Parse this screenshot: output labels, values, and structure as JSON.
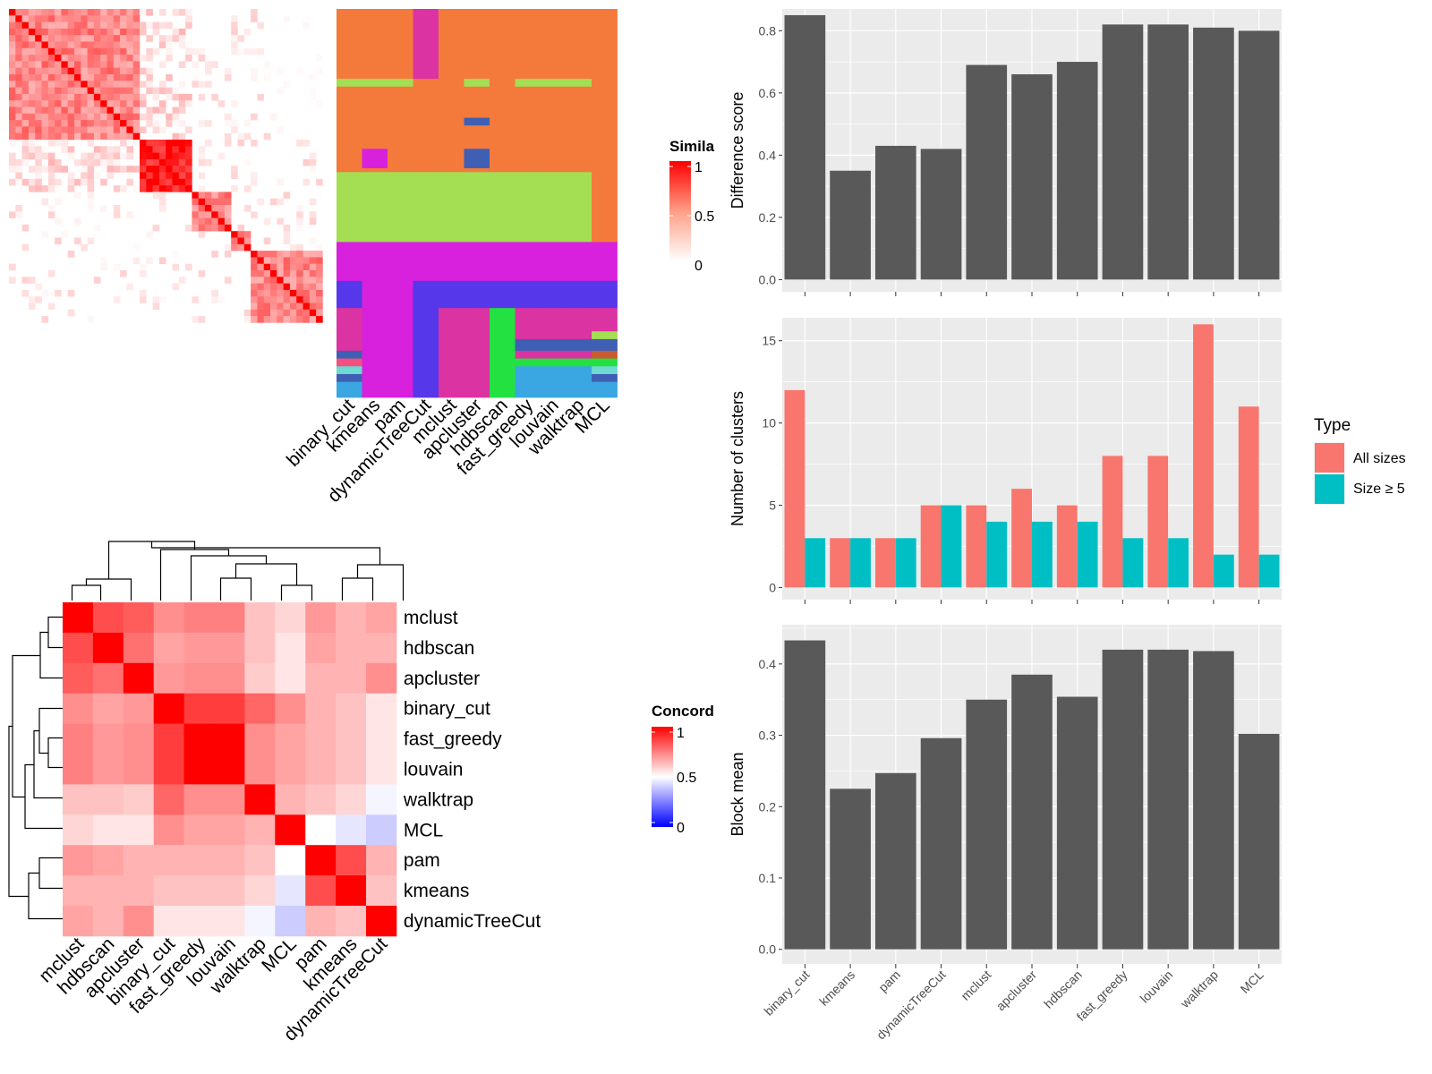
{
  "colors": {
    "panel_bg": "#ebebeb",
    "bar_dark": "#595959",
    "all_sizes": "#f8766d",
    "size_ge5": "#00bfc4",
    "heat_high": "#ff0000",
    "heat_low": "#ffffff",
    "heat_min": "#0000ff"
  },
  "similarity_legend": {
    "title": "Simila",
    "ticks": [
      "1",
      "0.5",
      "0"
    ]
  },
  "assignment_methods": [
    "binary_cut",
    "kmeans",
    "pam",
    "dynamicTreeCut",
    "mclust",
    "apcluster",
    "hdbscan",
    "fast_greedy",
    "louvain",
    "walktrap",
    "MCL"
  ],
  "concordance": {
    "legend_title": "Concord",
    "legend_ticks": [
      "1",
      "0.5",
      "0"
    ],
    "row_labels": [
      "mclust",
      "hdbscan",
      "apcluster",
      "binary_cut",
      "fast_greedy",
      "louvain",
      "walktrap",
      "MCL",
      "pam",
      "kmeans",
      "dynamicTreeCut"
    ],
    "col_labels": [
      "mclust",
      "hdbscan",
      "apcluster",
      "binary_cut",
      "fast_greedy",
      "louvain",
      "walktrap",
      "MCL",
      "pam",
      "kmeans",
      "dynamicTreeCut"
    ],
    "matrix": [
      [
        1.0,
        0.85,
        0.82,
        0.72,
        0.75,
        0.75,
        0.62,
        0.58,
        0.7,
        0.65,
        0.68
      ],
      [
        0.85,
        1.0,
        0.78,
        0.68,
        0.7,
        0.7,
        0.62,
        0.55,
        0.68,
        0.65,
        0.65
      ],
      [
        0.82,
        0.78,
        1.0,
        0.7,
        0.72,
        0.72,
        0.6,
        0.55,
        0.65,
        0.65,
        0.72
      ],
      [
        0.72,
        0.68,
        0.7,
        1.0,
        0.88,
        0.88,
        0.8,
        0.72,
        0.65,
        0.62,
        0.55
      ],
      [
        0.75,
        0.7,
        0.72,
        0.88,
        1.0,
        1.0,
        0.72,
        0.68,
        0.65,
        0.62,
        0.55
      ],
      [
        0.75,
        0.7,
        0.72,
        0.88,
        1.0,
        1.0,
        0.72,
        0.68,
        0.65,
        0.62,
        0.55
      ],
      [
        0.62,
        0.62,
        0.6,
        0.8,
        0.72,
        0.72,
        1.0,
        0.65,
        0.62,
        0.58,
        0.48
      ],
      [
        0.58,
        0.55,
        0.55,
        0.72,
        0.68,
        0.68,
        0.65,
        1.0,
        0.5,
        0.45,
        0.4
      ],
      [
        0.7,
        0.68,
        0.65,
        0.65,
        0.65,
        0.65,
        0.62,
        0.5,
        1.0,
        0.85,
        0.65
      ],
      [
        0.65,
        0.65,
        0.65,
        0.62,
        0.62,
        0.62,
        0.58,
        0.45,
        0.85,
        1.0,
        0.62
      ],
      [
        0.68,
        0.65,
        0.72,
        0.55,
        0.55,
        0.55,
        0.48,
        0.4,
        0.65,
        0.62,
        1.0
      ]
    ]
  },
  "chart_data": [
    {
      "type": "bar",
      "categories": [
        "binary_cut",
        "kmeans",
        "pam",
        "dynamicTreeCut",
        "mclust",
        "apcluster",
        "hdbscan",
        "fast_greedy",
        "louvain",
        "walktrap",
        "MCL"
      ],
      "values": [
        0.85,
        0.35,
        0.43,
        0.42,
        0.69,
        0.66,
        0.7,
        0.82,
        0.82,
        0.81,
        0.8
      ],
      "ylabel": "Difference score",
      "ylim": [
        0,
        0.87
      ],
      "yticks": [
        "0.0",
        "0.2",
        "0.4",
        "0.6",
        "0.8"
      ],
      "grid": true
    },
    {
      "type": "bar",
      "categories": [
        "binary_cut",
        "kmeans",
        "pam",
        "dynamicTreeCut",
        "mclust",
        "apcluster",
        "hdbscan",
        "fast_greedy",
        "louvain",
        "walktrap",
        "MCL"
      ],
      "series": [
        {
          "name": "All sizes",
          "values": [
            12,
            3,
            3,
            5,
            5,
            6,
            5,
            8,
            8,
            16,
            11
          ]
        },
        {
          "name": "Size ≥ 5",
          "values": [
            3,
            3,
            3,
            5,
            4,
            4,
            4,
            3,
            3,
            2,
            2
          ]
        }
      ],
      "ylabel": "Number of clusters",
      "ylim": [
        0,
        16.4
      ],
      "yticks": [
        "0",
        "5",
        "10",
        "15"
      ],
      "legend": {
        "title": "Type",
        "position": "right"
      },
      "grid": true
    },
    {
      "type": "bar",
      "categories": [
        "binary_cut",
        "kmeans",
        "pam",
        "dynamicTreeCut",
        "mclust",
        "apcluster",
        "hdbscan",
        "fast_greedy",
        "louvain",
        "walktrap",
        "MCL"
      ],
      "values": [
        0.433,
        0.225,
        0.247,
        0.296,
        0.35,
        0.385,
        0.354,
        0.42,
        0.42,
        0.418,
        0.302
      ],
      "ylabel": "Block mean",
      "ylim": [
        0,
        0.455
      ],
      "yticks": [
        "0.0",
        "0.1",
        "0.2",
        "0.3",
        "0.4"
      ],
      "grid": true
    }
  ]
}
